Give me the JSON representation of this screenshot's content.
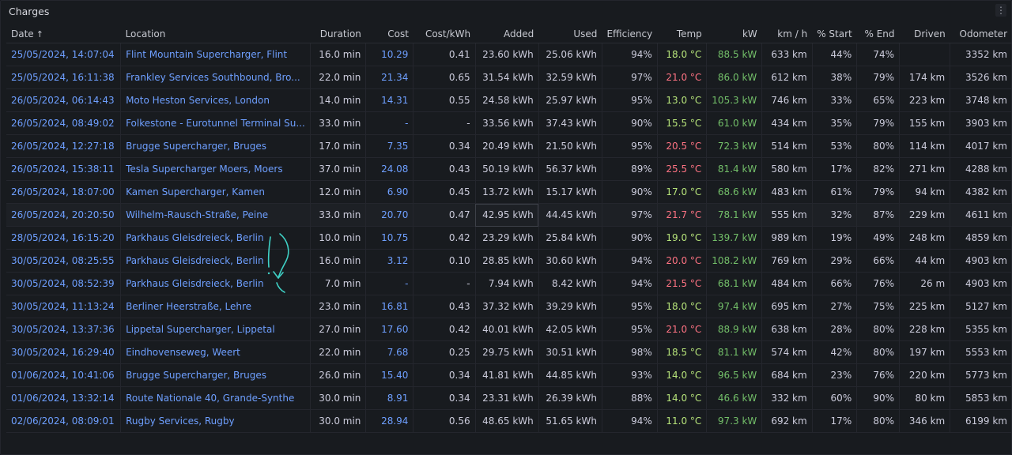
{
  "panel": {
    "title": "Charges"
  },
  "columns": [
    {
      "key": "date",
      "label": "Date",
      "align": "l",
      "w": 145
    },
    {
      "key": "location",
      "label": "Location",
      "align": "l",
      "w": 225
    },
    {
      "key": "duration",
      "label": "Duration",
      "align": "r",
      "w": 72
    },
    {
      "key": "cost",
      "label": "Cost",
      "align": "r",
      "w": 64
    },
    {
      "key": "costkwh",
      "label": "Cost/kWh",
      "align": "r",
      "w": 81
    },
    {
      "key": "added",
      "label": "Added",
      "align": "r",
      "w": 81
    },
    {
      "key": "used",
      "label": "Used",
      "align": "r",
      "w": 81
    },
    {
      "key": "efficiency",
      "label": "Efficiency",
      "align": "r",
      "w": 60
    },
    {
      "key": "temp",
      "label": "Temp",
      "align": "r",
      "w": 64
    },
    {
      "key": "kw",
      "label": "kW",
      "align": "r",
      "w": 64
    },
    {
      "key": "kmh",
      "label": "km / h",
      "align": "r",
      "w": 65
    },
    {
      "key": "start",
      "label": "% Start",
      "align": "r",
      "w": 55
    },
    {
      "key": "end",
      "label": "% End",
      "align": "r",
      "w": 55
    },
    {
      "key": "driven",
      "label": "Driven",
      "align": "r",
      "w": 66
    },
    {
      "key": "odometer",
      "label": "Odometer",
      "align": "r",
      "w": 80
    }
  ],
  "sort_icon": "↑",
  "rows": [
    {
      "date": "25/05/2024, 14:07:04",
      "location": "Flint Mountain Supercharger, Flint",
      "duration": "16.0 min",
      "cost": "10.29",
      "costkwh": "0.41",
      "added": "23.60 kWh",
      "used": "25.06 kWh",
      "efficiency": "94%",
      "temp": "18.0 °C",
      "kw": "88.5 kW",
      "kmh": "633 km",
      "start": "44%",
      "end": "74%",
      "driven": "",
      "odometer": "3352 km"
    },
    {
      "date": "25/05/2024, 16:11:38",
      "location": "Frankley Services Southbound, Bro...",
      "duration": "22.0 min",
      "cost": "21.34",
      "costkwh": "0.65",
      "added": "31.54 kWh",
      "used": "32.59 kWh",
      "efficiency": "97%",
      "temp": "21.0 °C",
      "kw": "86.0 kW",
      "kmh": "612 km",
      "start": "38%",
      "end": "79%",
      "driven": "174 km",
      "odometer": "3526 km"
    },
    {
      "date": "26/05/2024, 06:14:43",
      "location": "Moto Heston Services, London",
      "duration": "14.0 min",
      "cost": "14.31",
      "costkwh": "0.55",
      "added": "24.58 kWh",
      "used": "25.97 kWh",
      "efficiency": "95%",
      "temp": "13.0 °C",
      "kw": "105.3 kW",
      "kmh": "746 km",
      "start": "33%",
      "end": "65%",
      "driven": "223 km",
      "odometer": "3748 km"
    },
    {
      "date": "26/05/2024, 08:49:02",
      "location": "Folkestone - Eurotunnel Terminal Su...",
      "duration": "33.0 min",
      "cost": "-",
      "costkwh": "-",
      "added": "33.56 kWh",
      "used": "37.43 kWh",
      "efficiency": "90%",
      "temp": "15.5 °C",
      "kw": "61.0 kW",
      "kmh": "434 km",
      "start": "35%",
      "end": "79%",
      "driven": "155 km",
      "odometer": "3903 km"
    },
    {
      "date": "26/05/2024, 12:27:18",
      "location": "Brugge Supercharger, Bruges",
      "duration": "17.0 min",
      "cost": "7.35",
      "costkwh": "0.34",
      "added": "20.49 kWh",
      "used": "21.50 kWh",
      "efficiency": "95%",
      "temp": "20.5 °C",
      "kw": "72.3 kW",
      "kmh": "514 km",
      "start": "53%",
      "end": "80%",
      "driven": "114 km",
      "odometer": "4017 km"
    },
    {
      "date": "26/05/2024, 15:38:11",
      "location": "Tesla Supercharger Moers, Moers",
      "duration": "37.0 min",
      "cost": "24.08",
      "costkwh": "0.43",
      "added": "50.19 kWh",
      "used": "56.37 kWh",
      "efficiency": "89%",
      "temp": "25.5 °C",
      "kw": "81.4 kW",
      "kmh": "580 km",
      "start": "17%",
      "end": "82%",
      "driven": "271 km",
      "odometer": "4288 km"
    },
    {
      "date": "26/05/2024, 18:07:00",
      "location": "Kamen Supercharger, Kamen",
      "duration": "12.0 min",
      "cost": "6.90",
      "costkwh": "0.45",
      "added": "13.72 kWh",
      "used": "15.17 kWh",
      "efficiency": "90%",
      "temp": "17.0 °C",
      "kw": "68.6 kW",
      "kmh": "483 km",
      "start": "61%",
      "end": "79%",
      "driven": "94 km",
      "odometer": "4382 km"
    },
    {
      "date": "26/05/2024, 20:20:50",
      "location": "Wilhelm-Rausch-Straße, Peine",
      "duration": "33.0 min",
      "cost": "20.70",
      "costkwh": "0.47",
      "added": "42.95 kWh",
      "used": "44.45 kWh",
      "efficiency": "97%",
      "temp": "21.7 °C",
      "kw": "78.1 kW",
      "kmh": "555 km",
      "start": "32%",
      "end": "87%",
      "driven": "229 km",
      "odometer": "4611 km"
    },
    {
      "date": "28/05/2024, 16:15:20",
      "location": "Parkhaus Gleisdreieck, Berlin",
      "duration": "10.0 min",
      "cost": "10.75",
      "costkwh": "0.42",
      "added": "23.29 kWh",
      "used": "25.84 kWh",
      "efficiency": "90%",
      "temp": "19.0 °C",
      "kw": "139.7 kW",
      "kmh": "989 km",
      "start": "19%",
      "end": "49%",
      "driven": "248 km",
      "odometer": "4859 km"
    },
    {
      "date": "30/05/2024, 08:25:55",
      "location": "Parkhaus Gleisdreieck, Berlin",
      "duration": "16.0 min",
      "cost": "3.12",
      "costkwh": "0.10",
      "added": "28.85 kWh",
      "used": "30.60 kWh",
      "efficiency": "94%",
      "temp": "20.0 °C",
      "kw": "108.2 kW",
      "kmh": "769 km",
      "start": "29%",
      "end": "66%",
      "driven": "44 km",
      "odometer": "4903 km"
    },
    {
      "date": "30/05/2024, 08:52:39",
      "location": "Parkhaus Gleisdreieck, Berlin",
      "duration": "7.0 min",
      "cost": "-",
      "costkwh": "-",
      "added": "7.94 kWh",
      "used": "8.42 kWh",
      "efficiency": "94%",
      "temp": "21.5 °C",
      "kw": "68.1 kW",
      "kmh": "484 km",
      "start": "66%",
      "end": "76%",
      "driven": "26 m",
      "odometer": "4903 km"
    },
    {
      "date": "30/05/2024, 11:13:24",
      "location": "Berliner Heerstraße, Lehre",
      "duration": "23.0 min",
      "cost": "16.81",
      "costkwh": "0.43",
      "added": "37.32 kWh",
      "used": "39.29 kWh",
      "efficiency": "95%",
      "temp": "18.0 °C",
      "kw": "97.4 kW",
      "kmh": "695 km",
      "start": "27%",
      "end": "75%",
      "driven": "225 km",
      "odometer": "5127 km"
    },
    {
      "date": "30/05/2024, 13:37:36",
      "location": "Lippetal Supercharger, Lippetal",
      "duration": "27.0 min",
      "cost": "17.60",
      "costkwh": "0.42",
      "added": "40.01 kWh",
      "used": "42.05 kWh",
      "efficiency": "95%",
      "temp": "21.0 °C",
      "kw": "88.9 kW",
      "kmh": "638 km",
      "start": "28%",
      "end": "80%",
      "driven": "228 km",
      "odometer": "5355 km"
    },
    {
      "date": "30/05/2024, 16:29:40",
      "location": "Eindhovenseweg, Weert",
      "duration": "22.0 min",
      "cost": "7.68",
      "costkwh": "0.25",
      "added": "29.75 kWh",
      "used": "30.51 kWh",
      "efficiency": "98%",
      "temp": "18.5 °C",
      "kw": "81.1 kW",
      "kmh": "574 km",
      "start": "42%",
      "end": "80%",
      "driven": "197 km",
      "odometer": "5553 km"
    },
    {
      "date": "01/06/2024, 10:41:06",
      "location": "Brugge Supercharger, Bruges",
      "duration": "26.0 min",
      "cost": "15.40",
      "costkwh": "0.34",
      "added": "41.81 kWh",
      "used": "44.85 kWh",
      "efficiency": "93%",
      "temp": "14.0 °C",
      "kw": "96.5 kW",
      "kmh": "684 km",
      "start": "23%",
      "end": "76%",
      "driven": "220 km",
      "odometer": "5773 km"
    },
    {
      "date": "01/06/2024, 13:32:14",
      "location": "Route Nationale 40, Grande-Synthe",
      "duration": "30.0 min",
      "cost": "8.91",
      "costkwh": "0.34",
      "added": "23.31 kWh",
      "used": "26.39 kWh",
      "efficiency": "88%",
      "temp": "14.0 °C",
      "kw": "46.6 kW",
      "kmh": "332 km",
      "start": "60%",
      "end": "90%",
      "driven": "80 km",
      "odometer": "5853 km"
    },
    {
      "date": "02/06/2024, 08:09:01",
      "location": "Rugby Services, Rugby",
      "duration": "30.0 min",
      "cost": "28.94",
      "costkwh": "0.56",
      "added": "48.65 kWh",
      "used": "51.65 kWh",
      "efficiency": "94%",
      "temp": "11.0 °C",
      "kw": "97.3 kW",
      "kmh": "692 km",
      "start": "17%",
      "end": "80%",
      "driven": "346 km",
      "odometer": "6199 km"
    }
  ],
  "colors": {
    "link": "#6e9fff",
    "kw_green": "#73bf69",
    "temp_green": "#b6e37a",
    "temp_red": "#ff7383",
    "annotation": "#3fd1c6"
  }
}
